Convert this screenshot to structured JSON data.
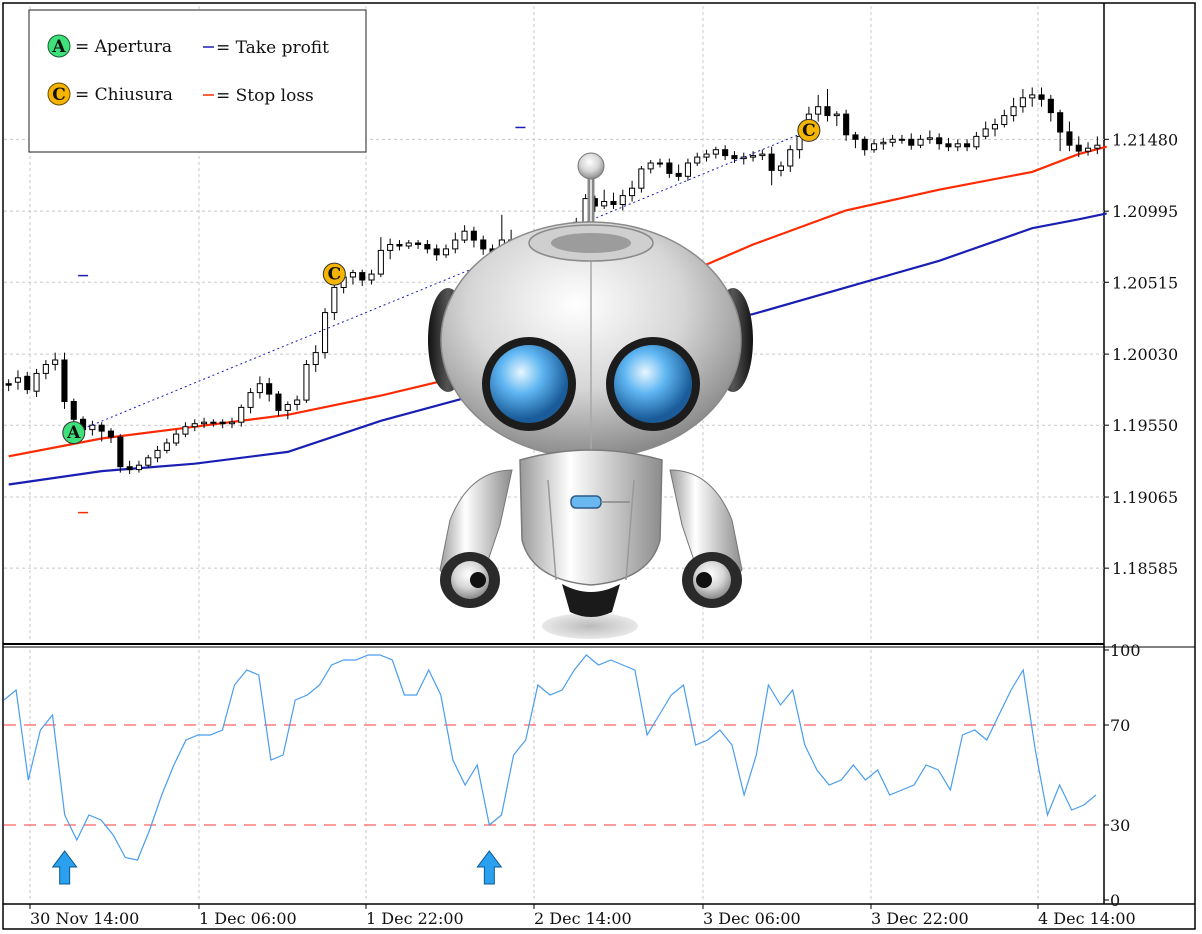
{
  "chart_data": [
    {
      "type": "candlestick",
      "ylim": [
        1.181,
        1.2238
      ],
      "y_ticks": [
        "1.21480",
        "1.20995",
        "1.20515",
        "1.20030",
        "1.19550",
        "1.19065",
        "1.18585"
      ],
      "grid": true,
      "legend_placement": "top-left",
      "legend": {
        "apertura_marker": "A",
        "apertura_label": "= Apertura",
        "chiusura_marker": "C",
        "chiusura_label": "= Chiusura",
        "take_profit_label": "= Take profit",
        "stop_loss_label": "= Stop loss"
      },
      "candles": [
        [
          1.1983,
          1.1982,
          1.1978,
          1.1986
        ],
        [
          1.1984,
          1.1987,
          1.1979,
          1.1992
        ],
        [
          1.1988,
          1.1979,
          1.1976,
          1.1991
        ],
        [
          1.1978,
          1.199,
          1.1974,
          1.1993
        ],
        [
          1.199,
          1.1996,
          1.1986,
          1.1999
        ],
        [
          1.1996,
          1.1999,
          1.1992,
          1.2004
        ],
        [
          1.1999,
          1.1971,
          1.1966,
          1.2004
        ],
        [
          1.1971,
          1.1959,
          1.195,
          1.1973
        ],
        [
          1.1959,
          1.1952,
          1.1946,
          1.1961
        ],
        [
          1.1952,
          1.1955,
          1.1948,
          1.1958
        ],
        [
          1.1955,
          1.1951,
          1.1944,
          1.1957
        ],
        [
          1.1951,
          1.1947,
          1.1943,
          1.1953
        ],
        [
          1.1947,
          1.1927,
          1.1923,
          1.1949
        ],
        [
          1.1927,
          1.1925,
          1.1922,
          1.1931
        ],
        [
          1.1925,
          1.1928,
          1.1923,
          1.1931
        ],
        [
          1.1928,
          1.1933,
          1.1926,
          1.1935
        ],
        [
          1.1933,
          1.1938,
          1.193,
          1.1941
        ],
        [
          1.1938,
          1.1943,
          1.1936,
          1.1946
        ],
        [
          1.1943,
          1.1949,
          1.1941,
          1.1952
        ],
        [
          1.1949,
          1.1954,
          1.1947,
          1.1957
        ],
        [
          1.1954,
          1.1956,
          1.1951,
          1.1959
        ],
        [
          1.1956,
          1.1957,
          1.1953,
          1.196
        ],
        [
          1.1957,
          1.1957,
          1.1954,
          1.1959
        ],
        [
          1.1957,
          1.1956,
          1.1953,
          1.1959
        ],
        [
          1.1956,
          1.1957,
          1.1953,
          1.196
        ],
        [
          1.1957,
          1.1967,
          1.1954,
          1.1969
        ],
        [
          1.1967,
          1.1977,
          1.1963,
          1.198
        ],
        [
          1.1977,
          1.1983,
          1.1973,
          1.1988
        ],
        [
          1.1983,
          1.1976,
          1.1971,
          1.1987
        ],
        [
          1.1976,
          1.1965,
          1.1961,
          1.1978
        ],
        [
          1.1965,
          1.1969,
          1.1959,
          1.1971
        ],
        [
          1.1969,
          1.1972,
          1.1965,
          1.1975
        ],
        [
          1.1972,
          1.1996,
          1.197,
          1.1999
        ],
        [
          1.1996,
          1.2004,
          1.1991,
          1.2009
        ],
        [
          1.2004,
          1.2031,
          1.2,
          1.2034
        ],
        [
          1.2031,
          1.2048,
          1.2026,
          1.2052
        ],
        [
          1.2048,
          1.2055,
          1.2044,
          1.2058
        ],
        [
          1.2055,
          1.2058,
          1.205,
          1.206
        ],
        [
          1.2058,
          1.2053,
          1.2049,
          1.206
        ],
        [
          1.2053,
          1.2057,
          1.205,
          1.206
        ],
        [
          1.2057,
          1.2073,
          1.2055,
          1.2082
        ],
        [
          1.2073,
          1.2077,
          1.2067,
          1.2081
        ],
        [
          1.2077,
          1.2076,
          1.2073,
          1.208
        ],
        [
          1.2076,
          1.2078,
          1.2074,
          1.208
        ],
        [
          1.2078,
          1.2077,
          1.2074,
          1.208
        ],
        [
          1.2077,
          1.2074,
          1.2071,
          1.208
        ],
        [
          1.2074,
          1.207,
          1.2066,
          1.2077
        ],
        [
          1.207,
          1.2074,
          1.2068,
          1.2077
        ],
        [
          1.2074,
          1.208,
          1.2071,
          1.2085
        ],
        [
          1.208,
          1.2086,
          1.2078,
          1.209
        ],
        [
          1.2086,
          1.208,
          1.2075,
          1.2089
        ],
        [
          1.208,
          1.2074,
          1.207,
          1.2083
        ],
        [
          1.2074,
          1.2072,
          1.2068,
          1.2077
        ],
        [
          1.2072,
          1.208,
          1.2068,
          1.2097
        ],
        [
          1.208,
          1.2074,
          1.207,
          1.2087
        ],
        [
          1.2074,
          1.2066,
          1.2062,
          1.208
        ],
        [
          1.2066,
          1.2068,
          1.2063,
          1.2076
        ],
        [
          1.2068,
          1.2073,
          1.2066,
          1.2076
        ],
        [
          1.2073,
          1.208,
          1.2071,
          1.2083
        ],
        [
          1.208,
          1.2085,
          1.2076,
          1.2087
        ],
        [
          1.2085,
          1.2079,
          1.2074,
          1.2088
        ],
        [
          1.2079,
          1.2092,
          1.2077,
          1.2095
        ],
        [
          1.2092,
          1.2108,
          1.209,
          1.2111
        ],
        [
          1.2108,
          1.2103,
          1.2099,
          1.211
        ],
        [
          1.2103,
          1.2106,
          1.2101,
          1.2114
        ],
        [
          1.2106,
          1.2104,
          1.2101,
          1.2112
        ],
        [
          1.2104,
          1.211,
          1.21,
          1.2114
        ],
        [
          1.211,
          1.2115,
          1.2106,
          1.212
        ],
        [
          1.2115,
          1.2128,
          1.2112,
          1.213
        ],
        [
          1.2128,
          1.2132,
          1.2125,
          1.2134
        ],
        [
          1.2132,
          1.2132,
          1.2129,
          1.2135
        ],
        [
          1.2132,
          1.2125,
          1.2122,
          1.2135
        ],
        [
          1.2125,
          1.2123,
          1.212,
          1.2131
        ],
        [
          1.2123,
          1.2132,
          1.212,
          1.2135
        ],
        [
          1.2132,
          1.2136,
          1.213,
          1.2139
        ],
        [
          1.2136,
          1.2138,
          1.2133,
          1.2141
        ],
        [
          1.2138,
          1.2141,
          1.2135,
          1.2143
        ],
        [
          1.2141,
          1.2137,
          1.2134,
          1.2144
        ],
        [
          1.2137,
          1.2135,
          1.2132,
          1.214
        ],
        [
          1.2135,
          1.2136,
          1.2131,
          1.2139
        ],
        [
          1.2136,
          1.2137,
          1.2133,
          1.214
        ],
        [
          1.2137,
          1.2138,
          1.2134,
          1.2141
        ],
        [
          1.2138,
          1.2127,
          1.2117,
          1.2143
        ],
        [
          1.2127,
          1.213,
          1.2123,
          1.2133
        ],
        [
          1.213,
          1.2141,
          1.2126,
          1.2144
        ],
        [
          1.2141,
          1.215,
          1.2135,
          1.2154
        ],
        [
          1.215,
          1.2165,
          1.2148,
          1.217
        ],
        [
          1.2165,
          1.217,
          1.216,
          1.2178
        ],
        [
          1.217,
          1.2164,
          1.216,
          1.2182
        ],
        [
          1.2164,
          1.2165,
          1.2157,
          1.2167
        ],
        [
          1.2165,
          1.2151,
          1.2147,
          1.2168
        ],
        [
          1.2151,
          1.2148,
          1.2142,
          1.2153
        ],
        [
          1.2148,
          1.2141,
          1.2137,
          1.215
        ],
        [
          1.2141,
          1.2145,
          1.2139,
          1.2148
        ],
        [
          1.2145,
          1.2146,
          1.2141,
          1.2149
        ],
        [
          1.2146,
          1.2148,
          1.2143,
          1.2151
        ],
        [
          1.2148,
          1.2148,
          1.2145,
          1.2151
        ],
        [
          1.2148,
          1.2144,
          1.2141,
          1.2152
        ],
        [
          1.2144,
          1.2148,
          1.2142,
          1.2151
        ],
        [
          1.2148,
          1.2149,
          1.2145,
          1.2154
        ],
        [
          1.2149,
          1.2145,
          1.2141,
          1.2152
        ],
        [
          1.2145,
          1.2143,
          1.214,
          1.2149
        ],
        [
          1.2143,
          1.2145,
          1.214,
          1.2148
        ],
        [
          1.2145,
          1.2143,
          1.214,
          1.2148
        ],
        [
          1.2143,
          1.215,
          1.2141,
          1.2153
        ],
        [
          1.215,
          1.2155,
          1.2148,
          1.216
        ],
        [
          1.2155,
          1.2158,
          1.215,
          1.2162
        ],
        [
          1.2158,
          1.2164,
          1.2156,
          1.2168
        ],
        [
          1.2164,
          1.217,
          1.216,
          1.2176
        ],
        [
          1.217,
          1.2176,
          1.2166,
          1.2182
        ],
        [
          1.2176,
          1.2178,
          1.217,
          1.2183
        ],
        [
          1.2178,
          1.2175,
          1.217,
          1.2183
        ],
        [
          1.2175,
          1.2166,
          1.216,
          1.2178
        ],
        [
          1.2166,
          1.2153,
          1.214,
          1.2168
        ],
        [
          1.2153,
          1.2144,
          1.214,
          1.216
        ],
        [
          1.2144,
          1.214,
          1.2136,
          1.215
        ],
        [
          1.214,
          1.2142,
          1.2137,
          1.2146
        ],
        [
          1.2142,
          1.2144,
          1.2138,
          1.215
        ]
      ],
      "take_profit_line": [
        [
          7,
          1.195
        ],
        [
          86,
          1.2154
        ]
      ],
      "moving_averages": [
        {
          "color": "#ff2a00",
          "values": [
            [
              0,
              1.1934
            ],
            [
              10,
              1.1946
            ],
            [
              20,
              1.1954
            ],
            [
              30,
              1.1962
            ],
            [
              40,
              1.1975
            ],
            [
              50,
              1.199
            ],
            [
              60,
              1.2028
            ],
            [
              70,
              1.205
            ],
            [
              80,
              1.2077
            ],
            [
              90,
              1.21
            ],
            [
              100,
              1.2114
            ],
            [
              110,
              1.2126
            ],
            [
              115,
              1.2138
            ],
            [
              118,
              1.2143
            ]
          ]
        },
        {
          "color": "#1a1fb4",
          "values": [
            [
              0,
              1.1915
            ],
            [
              10,
              1.1924
            ],
            [
              20,
              1.1929
            ],
            [
              30,
              1.1937
            ],
            [
              40,
              1.1958
            ],
            [
              50,
              1.1975
            ],
            [
              60,
              1.1997
            ],
            [
              70,
              1.2018
            ],
            [
              80,
              1.203
            ],
            [
              90,
              1.2048
            ],
            [
              100,
              1.2066
            ],
            [
              110,
              1.2088
            ],
            [
              115,
              1.2094
            ],
            [
              118,
              1.2098
            ]
          ]
        }
      ],
      "markers": [
        {
          "index": 7,
          "price": 1.195,
          "label": "A",
          "color": "#3ee07a"
        },
        {
          "index": 35,
          "price": 1.2057,
          "label": "C",
          "color": "#f5b400"
        },
        {
          "index": 86,
          "price": 1.2154,
          "label": "C",
          "color": "#f5b400"
        }
      ],
      "level_dashes": [
        {
          "index": 8,
          "price": 1.2056,
          "color": "#1a1fb4"
        },
        {
          "index": 8,
          "price": 1.1896,
          "color": "#ff2a00"
        },
        {
          "index": 55,
          "price": 1.2156,
          "color": "#1a1fb4"
        }
      ]
    },
    {
      "type": "line",
      "ylim": [
        0,
        100
      ],
      "y_ticks": [
        "100",
        "70",
        "30",
        "0"
      ],
      "reference_lines": [
        70,
        30
      ],
      "reference_color": "#ff6060",
      "series": [
        {
          "color": "#4a9df0",
          "values": [
            80,
            84,
            48,
            68,
            74,
            34,
            24,
            34,
            32,
            26,
            17,
            16,
            28,
            42,
            54,
            64,
            66,
            66,
            68,
            86,
            92,
            90,
            56,
            58,
            80,
            82,
            86,
            94,
            96,
            96,
            98,
            98,
            96,
            82,
            82,
            92,
            82,
            56,
            46,
            54,
            30,
            34,
            58,
            64,
            86,
            82,
            84,
            92,
            98,
            94,
            96,
            94,
            92,
            66,
            74,
            82,
            86,
            62,
            64,
            68,
            62,
            42,
            58,
            86,
            78,
            84,
            62,
            52,
            46,
            48,
            54,
            48,
            52,
            42,
            44,
            46,
            54,
            52,
            44,
            66,
            68,
            64,
            74,
            84,
            92,
            60,
            34,
            46,
            36,
            38,
            42
          ]
        }
      ],
      "arrows_at_index": [
        5,
        40
      ],
      "arrow_color": "#2aa0ee"
    }
  ],
  "x_axis_labels": [
    "30 Nov 14:00",
    "1 Dec 06:00",
    "1 Dec 22:00",
    "2 Dec 14:00",
    "3 Dec 06:00",
    "3 Dec 22:00",
    "4 Dec 14:00"
  ]
}
